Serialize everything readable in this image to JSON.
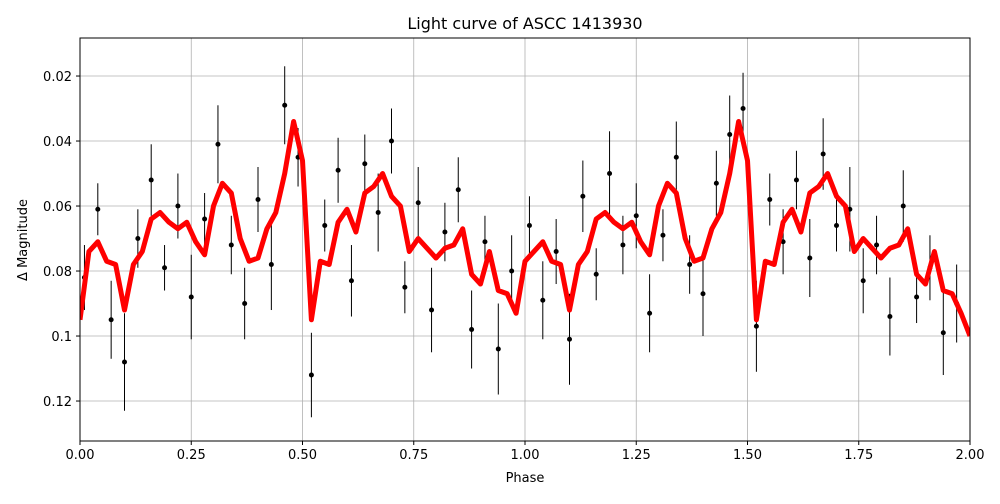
{
  "chart_data": {
    "type": "errorbar",
    "title": "Light curve of ASCC 1413930",
    "x_label": "Phase",
    "y_label": "Δ Magnitude",
    "xlim": [
      0,
      2
    ],
    "ylim": [
      0.1323,
      0.0083
    ],
    "xticks": [
      {
        "value": 0,
        "label": "0.00"
      },
      {
        "value": 0.25,
        "label": "0.25"
      },
      {
        "value": 0.5,
        "label": "0.50"
      },
      {
        "value": 0.75,
        "label": "0.75"
      },
      {
        "value": 1,
        "label": "1.00"
      },
      {
        "value": 1.25,
        "label": "1.25"
      },
      {
        "value": 1.5,
        "label": "1.50"
      },
      {
        "value": 1.75,
        "label": "1.75"
      },
      {
        "value": 2,
        "label": "2.00"
      }
    ],
    "yticks": [
      0.02,
      0.04,
      0.06,
      0.08,
      0.1,
      0.12
    ],
    "grid": true,
    "points": {
      "color": "#000000",
      "x": [
        0.01,
        0.04,
        0.07,
        0.1,
        0.13,
        0.16,
        0.19,
        0.22,
        0.25,
        0.28,
        0.31,
        0.34,
        0.37,
        0.4,
        0.43,
        0.46,
        0.49,
        0.52,
        0.55,
        0.58,
        0.61,
        0.64,
        0.67,
        0.7,
        0.73,
        0.76,
        0.79,
        0.82,
        0.85,
        0.88,
        0.91,
        0.94,
        0.97,
        1.01,
        1.04,
        1.07,
        1.1,
        1.13,
        1.16,
        1.19,
        1.22,
        1.25,
        1.28,
        1.31,
        1.34,
        1.37,
        1.4,
        1.43,
        1.46,
        1.49,
        1.52,
        1.55,
        1.58,
        1.61,
        1.64,
        1.67,
        1.7,
        1.73,
        1.76,
        1.79,
        1.82,
        1.85,
        1.88,
        1.91,
        1.94,
        1.97
      ],
      "values": [
        0.082,
        0.061,
        0.095,
        0.108,
        0.07,
        0.052,
        0.079,
        0.06,
        0.088,
        0.064,
        0.041,
        0.072,
        0.09,
        0.058,
        0.078,
        0.029,
        0.045,
        0.112,
        0.066,
        0.049,
        0.083,
        0.047,
        0.062,
        0.04,
        0.085,
        0.059,
        0.092,
        0.068,
        0.055,
        0.098,
        0.071,
        0.104,
        0.08,
        0.066,
        0.089,
        0.074,
        0.101,
        0.057,
        0.081,
        0.05,
        0.072,
        0.063,
        0.093,
        0.069,
        0.045,
        0.078,
        0.087,
        0.053,
        0.038,
        0.03,
        0.097,
        0.058,
        0.071,
        0.052,
        0.076,
        0.044,
        0.066,
        0.061,
        0.083,
        0.072,
        0.094,
        0.06,
        0.088,
        0.079,
        0.099,
        0.09
      ],
      "errors": [
        0.01,
        0.008,
        0.012,
        0.015,
        0.009,
        0.011,
        0.007,
        0.01,
        0.013,
        0.008,
        0.012,
        0.009,
        0.011,
        0.01,
        0.014,
        0.012,
        0.009,
        0.013,
        0.008,
        0.01,
        0.011,
        0.009,
        0.012,
        0.01,
        0.008,
        0.011,
        0.013,
        0.009,
        0.01,
        0.012,
        0.008,
        0.014,
        0.011,
        0.009,
        0.012,
        0.01,
        0.014,
        0.011,
        0.008,
        0.013,
        0.009,
        0.01,
        0.012,
        0.008,
        0.011,
        0.009,
        0.013,
        0.01,
        0.012,
        0.011,
        0.014,
        0.008,
        0.01,
        0.009,
        0.012,
        0.011,
        0.008,
        0.013,
        0.01,
        0.009,
        0.012,
        0.011,
        0.008,
        0.01,
        0.013,
        0.012
      ]
    },
    "curve": {
      "color": "#ff0000",
      "x": [
        0,
        0.02,
        0.04,
        0.06,
        0.08,
        0.1,
        0.12,
        0.14,
        0.16,
        0.18,
        0.2,
        0.22,
        0.24,
        0.26,
        0.28,
        0.3,
        0.32,
        0.34,
        0.36,
        0.38,
        0.4,
        0.42,
        0.44,
        0.46,
        0.48,
        0.5,
        0.52,
        0.54,
        0.56,
        0.58,
        0.6,
        0.62,
        0.64,
        0.66,
        0.68,
        0.7,
        0.72,
        0.74,
        0.76,
        0.78,
        0.8,
        0.82,
        0.84,
        0.86,
        0.88,
        0.9,
        0.92,
        0.94,
        0.96,
        0.98,
        1,
        1.02,
        1.04,
        1.06,
        1.08,
        1.1,
        1.12,
        1.14,
        1.16,
        1.18,
        1.2,
        1.22,
        1.24,
        1.26,
        1.28,
        1.3,
        1.32,
        1.34,
        1.36,
        1.38,
        1.4,
        1.42,
        1.44,
        1.46,
        1.48,
        1.5,
        1.52,
        1.54,
        1.56,
        1.58,
        1.6,
        1.62,
        1.64,
        1.66,
        1.68,
        1.7,
        1.72,
        1.74,
        1.76,
        1.78,
        1.8,
        1.82,
        1.84,
        1.86,
        1.88,
        1.9,
        1.92,
        1.94,
        1.96,
        1.98,
        2
      ],
      "values": [
        0.095,
        0.074,
        0.071,
        0.077,
        0.078,
        0.092,
        0.078,
        0.074,
        0.064,
        0.062,
        0.065,
        0.067,
        0.065,
        0.071,
        0.075,
        0.06,
        0.053,
        0.056,
        0.07,
        0.077,
        0.076,
        0.067,
        0.062,
        0.05,
        0.034,
        0.046,
        0.095,
        0.077,
        0.078,
        0.065,
        0.061,
        0.068,
        0.056,
        0.054,
        0.05,
        0.057,
        0.06,
        0.074,
        0.07,
        0.073,
        0.076,
        0.073,
        0.072,
        0.067,
        0.081,
        0.084,
        0.074,
        0.086,
        0.087,
        0.093,
        0.077,
        0.074,
        0.071,
        0.077,
        0.078,
        0.092,
        0.078,
        0.074,
        0.064,
        0.062,
        0.065,
        0.067,
        0.065,
        0.071,
        0.075,
        0.06,
        0.053,
        0.056,
        0.07,
        0.077,
        0.076,
        0.067,
        0.062,
        0.05,
        0.034,
        0.046,
        0.095,
        0.077,
        0.078,
        0.065,
        0.061,
        0.068,
        0.056,
        0.054,
        0.05,
        0.057,
        0.06,
        0.074,
        0.07,
        0.073,
        0.076,
        0.073,
        0.072,
        0.067,
        0.081,
        0.084,
        0.074,
        0.086,
        0.087,
        0.093,
        0.1
      ]
    }
  }
}
